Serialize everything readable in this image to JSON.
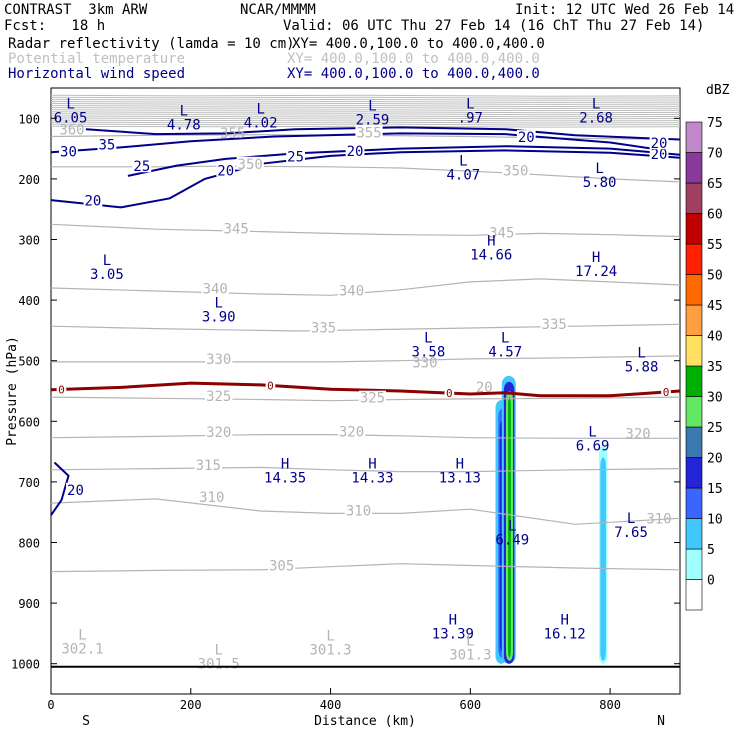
{
  "header": {
    "model": "CONTRAST  3km ARW",
    "org": "NCAR/MMMM",
    "init": "Init: 12 UTC Wed 26 Feb 14",
    "fcst": "Fcst:   18 h",
    "valid": "Valid: 06 UTC Thu 27 Feb 14 (16 ChT Thu 27 Feb 14)"
  },
  "fields": [
    {
      "name": "Radar reflectivity (lamda = 10 cm)",
      "xy": "XY= 400.0,100.0 to 400.0,400.0",
      "color": "#000000"
    },
    {
      "name": "Potential temperature",
      "xy": "XY= 400.0,100.0 to 400.0,400.0",
      "color": "#c0c0c0"
    },
    {
      "name": "Horizontal wind speed",
      "xy": "XY= 400.0,100.0 to 400.0,400.0",
      "color": "#00008b"
    }
  ],
  "chart_data": {
    "type": "cross-section",
    "xlabel": "Distance (km)",
    "ylabel": "Pressure (hPa)",
    "xlim": [
      0,
      900
    ],
    "ylim": [
      1050,
      50
    ],
    "x_ticks": [
      "0",
      "200",
      "400",
      "600",
      "800"
    ],
    "y_ticks": [
      "100",
      "200",
      "300",
      "400",
      "500",
      "600",
      "700",
      "800",
      "900",
      "1000"
    ],
    "x_ends": {
      "left": "S",
      "right": "N"
    },
    "colorbar": {
      "unit": "dBZ",
      "levels": [
        "0",
        "5",
        "10",
        "15",
        "20",
        "25",
        "30",
        "35",
        "40",
        "45",
        "50",
        "55",
        "60",
        "65",
        "70",
        "75"
      ],
      "colors": [
        "#ffffff",
        "#a0ffff",
        "#40c8ff",
        "#3a66ff",
        "#2424d8",
        "#3a7ab0",
        "#62e862",
        "#00b000",
        "#ffe060",
        "#ffa040",
        "#ff6a00",
        "#ff2000",
        "#c00000",
        "#a04060",
        "#8a3a9a",
        "#c088c8"
      ]
    },
    "theta_contours": [
      {
        "level": 355,
        "p": [
          [
            0,
            130
          ],
          [
            150,
            128
          ],
          [
            300,
            127
          ],
          [
            450,
            128
          ],
          [
            600,
            130
          ],
          [
            750,
            133
          ],
          [
            900,
            135
          ]
        ]
      },
      {
        "level": 350,
        "p": [
          [
            0,
            180
          ],
          [
            150,
            180
          ],
          [
            250,
            179
          ],
          [
            400,
            180
          ],
          [
            500,
            182
          ],
          [
            650,
            190
          ],
          [
            800,
            200
          ],
          [
            900,
            205
          ]
        ]
      },
      {
        "level": 345,
        "p": [
          [
            0,
            275
          ],
          [
            150,
            283
          ],
          [
            300,
            287
          ],
          [
            400,
            290
          ],
          [
            500,
            292
          ],
          [
            600,
            293
          ],
          [
            700,
            290
          ],
          [
            800,
            292
          ],
          [
            900,
            295
          ]
        ]
      },
      {
        "level": 340,
        "p": [
          [
            0,
            380
          ],
          [
            150,
            385
          ],
          [
            300,
            390
          ],
          [
            400,
            392
          ],
          [
            500,
            383
          ],
          [
            600,
            370
          ],
          [
            700,
            365
          ],
          [
            800,
            370
          ],
          [
            900,
            375
          ]
        ]
      },
      {
        "level": 335,
        "p": [
          [
            0,
            443
          ],
          [
            150,
            447
          ],
          [
            250,
            449
          ],
          [
            350,
            451
          ],
          [
            450,
            449
          ],
          [
            550,
            447
          ],
          [
            650,
            445
          ],
          [
            750,
            443
          ],
          [
            900,
            440
          ]
        ]
      },
      {
        "level": 330,
        "p": [
          [
            0,
            502
          ],
          [
            150,
            502
          ],
          [
            300,
            502
          ],
          [
            400,
            502
          ],
          [
            500,
            500
          ],
          [
            600,
            497
          ],
          [
            750,
            495
          ],
          [
            900,
            492
          ]
        ]
      },
      {
        "level": 325,
        "p": [
          [
            0,
            560
          ],
          [
            150,
            562
          ],
          [
            300,
            564
          ],
          [
            400,
            566
          ],
          [
            500,
            564
          ],
          [
            600,
            563
          ],
          [
            750,
            562
          ],
          [
            900,
            560
          ]
        ]
      },
      {
        "level": 320,
        "p": [
          [
            0,
            627
          ],
          [
            150,
            625
          ],
          [
            300,
            622
          ],
          [
            400,
            622
          ],
          [
            500,
            624
          ],
          [
            600,
            627
          ],
          [
            750,
            628
          ],
          [
            900,
            628
          ]
        ]
      },
      {
        "level": 315,
        "p": [
          [
            0,
            680
          ],
          [
            150,
            678
          ],
          [
            300,
            676
          ],
          [
            400,
            680
          ],
          [
            500,
            683
          ],
          [
            600,
            683
          ],
          [
            750,
            680
          ],
          [
            900,
            678
          ]
        ]
      },
      {
        "level": 310,
        "p": [
          [
            0,
            735
          ],
          [
            150,
            728
          ],
          [
            300,
            748
          ],
          [
            400,
            752
          ],
          [
            500,
            752
          ],
          [
            600,
            745
          ],
          [
            750,
            770
          ],
          [
            900,
            760
          ]
        ]
      },
      {
        "level": 305,
        "p": [
          [
            0,
            848
          ],
          [
            150,
            846
          ],
          [
            300,
            845
          ],
          [
            400,
            840
          ],
          [
            500,
            835
          ],
          [
            600,
            838
          ],
          [
            750,
            842
          ],
          [
            900,
            845
          ]
        ]
      }
    ],
    "theta_labels": [
      {
        "text": "355",
        "x": 455,
        "p": 128
      },
      {
        "text": "350",
        "x": 285,
        "p": 180
      },
      {
        "text": "350",
        "x": 665,
        "p": 191
      },
      {
        "text": "345",
        "x": 265,
        "p": 287
      },
      {
        "text": "345",
        "x": 645,
        "p": 293
      },
      {
        "text": "340",
        "x": 235,
        "p": 386
      },
      {
        "text": "340",
        "x": 430,
        "p": 389
      },
      {
        "text": "335",
        "x": 390,
        "p": 450
      },
      {
        "text": "335",
        "x": 720,
        "p": 444
      },
      {
        "text": "330",
        "x": 240,
        "p": 502
      },
      {
        "text": "325",
        "x": 240,
        "p": 563
      },
      {
        "text": "325",
        "x": 460,
        "p": 566
      },
      {
        "text": "320",
        "x": 240,
        "p": 623
      },
      {
        "text": "320",
        "x": 430,
        "p": 622
      },
      {
        "text": "315",
        "x": 225,
        "p": 677
      },
      {
        "text": "310",
        "x": 230,
        "p": 730
      },
      {
        "text": "310",
        "x": 440,
        "p": 752
      },
      {
        "text": "305",
        "x": 330,
        "p": 843
      }
    ],
    "wind_contours": [
      {
        "level": 35,
        "p": [
          [
            50,
            118
          ],
          [
            150,
            126
          ],
          [
            250,
            125
          ],
          [
            350,
            118
          ],
          [
            500,
            115
          ],
          [
            650,
            118
          ],
          [
            750,
            128
          ],
          [
            900,
            135
          ]
        ]
      },
      {
        "level": 30,
        "p": [
          [
            0,
            156
          ],
          [
            100,
            148
          ],
          [
            200,
            138
          ],
          [
            320,
            130
          ],
          [
            500,
            125
          ],
          [
            650,
            126
          ],
          [
            800,
            140
          ],
          [
            860,
            150
          ]
        ]
      },
      {
        "level": 25,
        "p": [
          [
            110,
            195
          ],
          [
            180,
            178
          ],
          [
            250,
            167
          ],
          [
            350,
            158
          ],
          [
            500,
            150
          ],
          [
            650,
            146
          ],
          [
            800,
            150
          ],
          [
            900,
            160
          ]
        ]
      },
      {
        "level": 20,
        "p": [
          [
            0,
            235
          ],
          [
            100,
            247
          ],
          [
            170,
            232
          ],
          [
            220,
            200
          ],
          [
            300,
            175
          ],
          [
            400,
            162
          ],
          [
            500,
            156
          ],
          [
            650,
            153
          ],
          [
            800,
            157
          ],
          [
            900,
            165
          ]
        ]
      },
      {
        "level": 20,
        "p": [
          [
            5,
            668
          ],
          [
            25,
            690
          ],
          [
            15,
            730
          ],
          [
            0,
            755
          ]
        ]
      }
    ],
    "wind_labels": [
      {
        "text": "35",
        "x": 80,
        "p": 148
      },
      {
        "text": "30",
        "x": 25,
        "p": 160
      },
      {
        "text": "25",
        "x": 130,
        "p": 184
      },
      {
        "text": "25",
        "x": 350,
        "p": 168
      },
      {
        "text": "20",
        "x": 60,
        "p": 241
      },
      {
        "text": "20",
        "x": 250,
        "p": 191
      },
      {
        "text": "20",
        "x": 435,
        "p": 159
      },
      {
        "text": "20",
        "x": 680,
        "p": 136
      },
      {
        "text": "20",
        "x": 870,
        "p": 164
      },
      {
        "text": "20",
        "x": 35,
        "p": 718
      },
      {
        "text": "20",
        "x": 870,
        "p": 146
      }
    ],
    "freezing_level": [
      [
        0,
        548
      ],
      [
        100,
        544
      ],
      [
        200,
        537
      ],
      [
        300,
        540
      ],
      [
        400,
        547
      ],
      [
        500,
        550
      ],
      [
        600,
        555
      ],
      [
        650,
        553
      ],
      [
        700,
        558
      ],
      [
        800,
        558
      ],
      [
        900,
        550
      ]
    ],
    "freezing_label": "0",
    "freezing_label_x": [
      15,
      314,
      570,
      880
    ],
    "highs_lows": [
      {
        "text": "L",
        "value": "6.05",
        "x": 28,
        "p": 84,
        "color": "#00008b"
      },
      {
        "text": "L",
        "value": "4.78",
        "x": 190,
        "p": 95,
        "color": "#00008b"
      },
      {
        "text": "L",
        "value": "4.02",
        "x": 300,
        "p": 92,
        "color": "#00008b"
      },
      {
        "text": "L",
        "value": "2.59",
        "x": 460,
        "p": 87,
        "color": "#00008b"
      },
      {
        "text": "L",
        "value": ".97",
        "x": 600,
        "p": 84,
        "color": "#00008b"
      },
      {
        "text": "L",
        "value": "2.68",
        "x": 780,
        "p": 84,
        "color": "#00008b"
      },
      {
        "text": "L",
        "value": "4.07",
        "x": 590,
        "p": 178,
        "color": "#00008b"
      },
      {
        "text": "L",
        "value": "5.80",
        "x": 785,
        "p": 190,
        "color": "#00008b"
      },
      {
        "text": "H",
        "value": "14.66",
        "x": 630,
        "p": 310,
        "color": "#00008b"
      },
      {
        "text": "H",
        "value": "17.24",
        "x": 780,
        "p": 337,
        "color": "#00008b"
      },
      {
        "text": "L",
        "value": "3.05",
        "x": 80,
        "p": 342,
        "color": "#00008b"
      },
      {
        "text": "L",
        "value": "3.90",
        "x": 240,
        "p": 412,
        "color": "#00008b"
      },
      {
        "text": "L",
        "value": "3.58",
        "x": 540,
        "p": 470,
        "color": "#00008b"
      },
      {
        "text": "L",
        "value": "4.57",
        "x": 650,
        "p": 470,
        "color": "#00008b"
      },
      {
        "text": "L",
        "value": "5.88",
        "x": 845,
        "p": 495,
        "color": "#00008b"
      },
      {
        "text": "L",
        "value": "6.69",
        "x": 775,
        "p": 625,
        "color": "#00008b"
      },
      {
        "text": "H",
        "value": "14.35",
        "x": 335,
        "p": 678,
        "color": "#00008b"
      },
      {
        "text": "H",
        "value": "14.33",
        "x": 460,
        "p": 678,
        "color": "#00008b"
      },
      {
        "text": "H",
        "value": "13.13",
        "x": 585,
        "p": 678,
        "color": "#00008b"
      },
      {
        "text": "L",
        "value": "6.49",
        "x": 660,
        "p": 780,
        "color": "#00008b"
      },
      {
        "text": "L",
        "value": "7.65",
        "x": 830,
        "p": 768,
        "color": "#00008b"
      },
      {
        "text": "H",
        "value": "13.39",
        "x": 575,
        "p": 935,
        "color": "#00008b"
      },
      {
        "text": "H",
        "value": "16.12",
        "x": 735,
        "p": 935,
        "color": "#00008b"
      },
      {
        "text": "L",
        "value": "302.1",
        "x": 45,
        "p": 960,
        "color": "#b4b4b4"
      },
      {
        "text": "L",
        "value": "301.5",
        "x": 240,
        "p": 985,
        "color": "#b4b4b4"
      },
      {
        "text": "L",
        "value": "301.3",
        "x": 400,
        "p": 962,
        "color": "#b4b4b4"
      },
      {
        "text": "L",
        "value": "301.3",
        "x": 600,
        "p": 970,
        "color": "#b4b4b4"
      }
    ],
    "extra_labels": [
      {
        "text": "360",
        "x": 30,
        "p": 120,
        "color": "#b4b4b4"
      },
      {
        "text": "355",
        "x": 260,
        "p": 126,
        "color": "#b4b4b4"
      },
      {
        "text": "20",
        "x": 620,
        "p": 545,
        "color": "#b4b4b4"
      },
      {
        "text": "330",
        "x": 535,
        "p": 505,
        "color": "#b4b4b4"
      },
      {
        "text": "320",
        "x": 840,
        "p": 622,
        "color": "#b4b4b4"
      },
      {
        "text": "310",
        "x": 870,
        "p": 762,
        "color": "#b4b4b4"
      }
    ],
    "reflectivity_cells": [
      {
        "x": [
          636,
          652
        ],
        "p": [
          565,
          1000
        ],
        "dbz": 10
      },
      {
        "x": [
          640,
          650
        ],
        "p": [
          580,
          990
        ],
        "dbz": 15
      },
      {
        "x": [
          642,
          648
        ],
        "p": [
          600,
          980
        ],
        "dbz": 20
      },
      {
        "x": [
          645,
          665
        ],
        "p": [
          525,
          1000
        ],
        "dbz": 10
      },
      {
        "x": [
          648,
          663
        ],
        "p": [
          535,
          1000
        ],
        "dbz": 20
      },
      {
        "x": [
          651,
          661
        ],
        "p": [
          550,
          995
        ],
        "dbz": 30
      },
      {
        "x": [
          654,
          658
        ],
        "p": [
          560,
          990
        ],
        "dbz": 35
      },
      {
        "x": [
          784,
          796
        ],
        "p": [
          640,
          1000
        ],
        "dbz": 5
      },
      {
        "x": [
          786,
          794
        ],
        "p": [
          660,
          995
        ],
        "dbz": 10
      }
    ],
    "ground_pressure": 1005
  }
}
